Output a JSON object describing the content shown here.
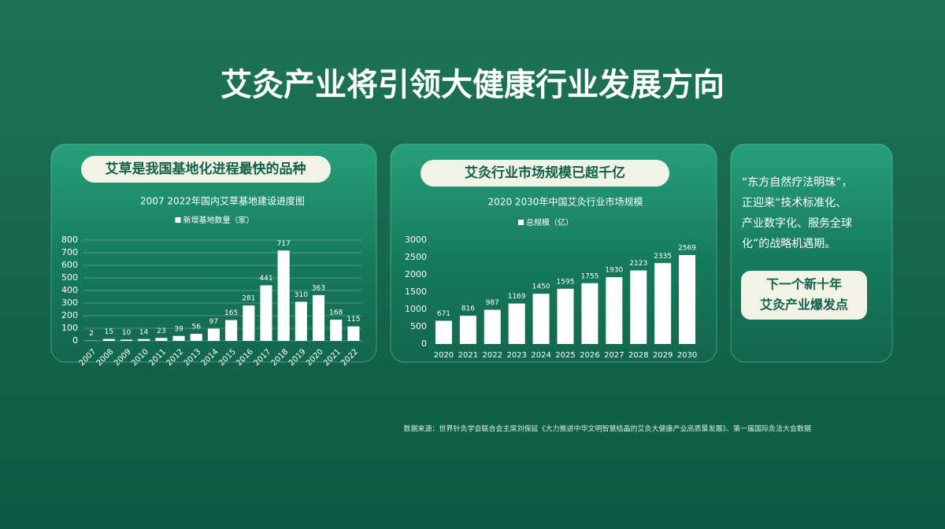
{
  "title": "艾灸产业将引领大健康行业发展方向",
  "chart_data": [
    {
      "type": "bar",
      "heading": "艾草是我国基地化进程最快的品种",
      "title": "2007 2022年国内艾草基地建设进度图",
      "categories": [
        "2007",
        "2008",
        "2009",
        "2010",
        "2011",
        "2012",
        "2013",
        "2014",
        "2015",
        "2016",
        "2017",
        "2018",
        "2019",
        "2020",
        "2021",
        "2022"
      ],
      "series": [
        {
          "name": "新增基地数量（家）",
          "color": "#ffffff",
          "values": [
            2,
            15,
            10,
            14,
            23,
            39,
            56,
            97,
            165,
            281,
            441,
            717,
            310,
            363,
            168,
            115
          ]
        }
      ],
      "ylim": [
        0,
        800
      ],
      "yticks": [
        0,
        100,
        200,
        300,
        400,
        500,
        600,
        700,
        800
      ],
      "grid": true
    },
    {
      "type": "bar",
      "heading": "艾灸行业市场规模已超千亿",
      "title": "2020 2030年中国艾灸行业市场规模",
      "categories": [
        "2020",
        "2021",
        "2022",
        "2023",
        "2024",
        "2025",
        "2026",
        "2027",
        "2028",
        "2029",
        "2030"
      ],
      "series": [
        {
          "name": "总规模（亿）",
          "color": "#ffffff",
          "values": [
            671,
            816,
            987,
            1169,
            1450,
            1595,
            1755,
            1930,
            2123,
            2335,
            2569
          ]
        }
      ],
      "ylim": [
        0,
        3000
      ],
      "yticks": [
        0,
        500,
        1000,
        1500,
        2000,
        2500,
        3000
      ],
      "grid": false
    }
  ],
  "side": {
    "text": [
      "“东方自然疗法明珠”，",
      "正迎来“技术标准化、",
      "产业数字化、服务全球",
      "化”的战略机遇期。"
    ],
    "highlight": [
      "下一个新十年",
      "艾灸产业爆发点"
    ]
  },
  "source": "数据来源：世界针灸学会联合会主席刘保延《大力推进中华文明智慧结晶的艾灸大健康产业高质量发展》、第一届国际灸法大会数据"
}
